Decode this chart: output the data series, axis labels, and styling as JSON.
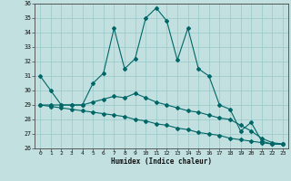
{
  "xlabel": "Humidex (Indice chaleur)",
  "bg_color": "#c2e0e0",
  "line_color": "#006666",
  "grid_color": "#96c8c8",
  "xlim": [
    -0.5,
    23.5
  ],
  "ylim": [
    26,
    36
  ],
  "xticks": [
    0,
    1,
    2,
    3,
    4,
    5,
    6,
    7,
    8,
    9,
    10,
    11,
    12,
    13,
    14,
    15,
    16,
    17,
    18,
    19,
    20,
    21,
    22,
    23
  ],
  "yticks": [
    26,
    27,
    28,
    29,
    30,
    31,
    32,
    33,
    34,
    35,
    36
  ],
  "line1_x": [
    0,
    1,
    2,
    3,
    4,
    5,
    6,
    7,
    8,
    9,
    10,
    11,
    12,
    13,
    14,
    15,
    16,
    17,
    18,
    19,
    20,
    21,
    22,
    23
  ],
  "line1_y": [
    31.0,
    30.0,
    29.0,
    29.0,
    29.0,
    30.5,
    31.2,
    34.3,
    31.5,
    32.2,
    35.0,
    35.7,
    34.8,
    32.1,
    34.3,
    31.5,
    31.0,
    29.0,
    28.7,
    27.2,
    27.8,
    26.5,
    26.3,
    26.3
  ],
  "line2_x": [
    0,
    1,
    2,
    3,
    4,
    5,
    6,
    7,
    8,
    9,
    10,
    11,
    12,
    13,
    14,
    15,
    16,
    17,
    18,
    19,
    20,
    21,
    22,
    23
  ],
  "line2_y": [
    29.0,
    29.0,
    29.0,
    29.0,
    29.0,
    29.2,
    29.4,
    29.6,
    29.5,
    29.8,
    29.5,
    29.2,
    29.0,
    28.8,
    28.6,
    28.5,
    28.3,
    28.1,
    28.0,
    27.6,
    27.2,
    26.7,
    26.4,
    26.3
  ],
  "line3_x": [
    0,
    1,
    2,
    3,
    4,
    5,
    6,
    7,
    8,
    9,
    10,
    11,
    12,
    13,
    14,
    15,
    16,
    17,
    18,
    19,
    20,
    21,
    22,
    23
  ],
  "line3_y": [
    29.0,
    28.9,
    28.8,
    28.7,
    28.6,
    28.5,
    28.4,
    28.3,
    28.2,
    28.0,
    27.9,
    27.7,
    27.6,
    27.4,
    27.3,
    27.1,
    27.0,
    26.9,
    26.7,
    26.6,
    26.5,
    26.4,
    26.3,
    26.3
  ]
}
